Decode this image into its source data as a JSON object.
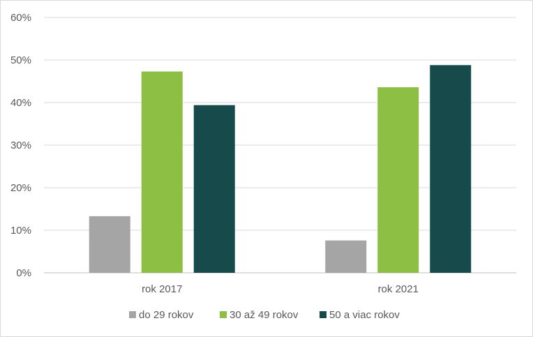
{
  "chart_data": {
    "type": "bar",
    "title": "",
    "xlabel": "",
    "ylabel": "",
    "categories": [
      "rok 2017",
      "rok 2021"
    ],
    "series": [
      {
        "name": "do 29 rokov",
        "color": "#a5a5a5",
        "values": [
          13.3,
          7.6
        ]
      },
      {
        "name": "30 až 49 rokov",
        "color": "#8cbf44",
        "values": [
          47.3,
          43.6
        ]
      },
      {
        "name": "50 a viac rokov",
        "color": "#174b4b",
        "values": [
          39.4,
          48.8
        ]
      }
    ],
    "ylim": [
      0,
      60
    ],
    "yticks": [
      "0%",
      "10%",
      "20%",
      "30%",
      "40%",
      "50%",
      "60%"
    ],
    "grid": true,
    "legend_position": "bottom"
  }
}
